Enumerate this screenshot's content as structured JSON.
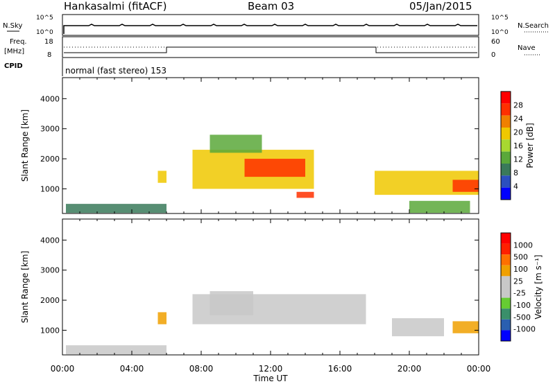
{
  "header": {
    "station": "Hankasalmi (fitACF)",
    "beam": "Beam 03",
    "date": "05/Jan/2015"
  },
  "summary": {
    "nsky_label": "N.Sky",
    "nsearch_label": "N.Search",
    "freq_label_1": "Freq.",
    "freq_label_2": "[MHz]",
    "nave_label": "Nave",
    "cpid_label": "CPID",
    "cpid_value": "normal (fast stereo) 153",
    "noise_ticks_left": [
      "10^5",
      "10^0"
    ],
    "noise_ticks_right": [
      "10^5",
      "10^0"
    ],
    "freq_ticks_left": [
      "18",
      "8"
    ],
    "nave_ticks_right": [
      "60",
      "0"
    ]
  },
  "colors": {
    "power_scale": [
      "#0000ff",
      "#2b4fbf",
      "#3a7a5a",
      "#5aa83a",
      "#a8d830",
      "#f0c800",
      "#f08000",
      "#ff3000",
      "#ff0000"
    ],
    "velocity_scale": [
      "#0000ff",
      "#2a5fb0",
      "#3a8f6a",
      "#66cc33",
      "#c8c8c8",
      "#c8c8c8",
      "#f0a000",
      "#ff7000",
      "#ff2000",
      "#ff0000"
    ],
    "ground_scatter": "#c8c8c8"
  },
  "chart_data": [
    {
      "type": "heatmap",
      "title": "Power",
      "xlabel": "Time UT",
      "ylabel": "Slant Range [km]",
      "colorbar_label": "Power [dB]",
      "colorbar_ticks": [
        "28",
        "24",
        "20",
        "16",
        "12",
        "8",
        "4"
      ],
      "x_ticks": [
        "00:00",
        "04:00",
        "08:00",
        "12:00",
        "16:00",
        "20:00",
        "00:00"
      ],
      "y_ticks": [
        "4000",
        "3000",
        "2000",
        "1000"
      ],
      "xlim": [
        0,
        24
      ],
      "ylim": [
        180,
        4700
      ],
      "zlim": [
        0,
        32
      ],
      "regions": [
        {
          "t0": 0.2,
          "t1": 6.0,
          "r0": 200,
          "r1": 500,
          "level": 8
        },
        {
          "t0": 5.5,
          "t1": 6.0,
          "r0": 1200,
          "r1": 1600,
          "level": 20
        },
        {
          "t0": 7.5,
          "t1": 14.5,
          "r0": 1000,
          "r1": 2300,
          "level": 18
        },
        {
          "t0": 10.5,
          "t1": 14.0,
          "r0": 1400,
          "r1": 2000,
          "level": 26
        },
        {
          "t0": 13.5,
          "t1": 14.5,
          "r0": 700,
          "r1": 900,
          "level": 28
        },
        {
          "t0": 8.5,
          "t1": 11.5,
          "r0": 2200,
          "r1": 2800,
          "level": 12
        },
        {
          "t0": 18.0,
          "t1": 24.0,
          "r0": 800,
          "r1": 1600,
          "level": 18
        },
        {
          "t0": 22.5,
          "t1": 24.0,
          "r0": 900,
          "r1": 1300,
          "level": 26
        },
        {
          "t0": 20.0,
          "t1": 23.5,
          "r0": 200,
          "r1": 600,
          "level": 14
        }
      ]
    },
    {
      "type": "heatmap",
      "title": "Velocity",
      "xlabel": "Time UT",
      "ylabel": "Slant Range [km]",
      "colorbar_label": "Velocity [m s⁻¹]",
      "colorbar_ticks": [
        "1000",
        "500",
        "100",
        "25",
        "-25",
        "-100",
        "-500",
        "-1000"
      ],
      "x_ticks": [
        "00:00",
        "04:00",
        "08:00",
        "12:00",
        "16:00",
        "20:00",
        "00:00"
      ],
      "y_ticks": [
        "4000",
        "3000",
        "2000",
        "1000"
      ],
      "xlim": [
        0,
        24
      ],
      "ylim": [
        180,
        4700
      ],
      "zlim": [
        -1000,
        1000
      ],
      "regions": [
        {
          "t0": 0.2,
          "t1": 6.0,
          "r0": 200,
          "r1": 500,
          "level": 0
        },
        {
          "t0": 7.5,
          "t1": 17.5,
          "r0": 1200,
          "r1": 2200,
          "level": 0
        },
        {
          "t0": 8.5,
          "t1": 11.0,
          "r0": 1500,
          "r1": 2300,
          "level": -100
        },
        {
          "t0": 19.0,
          "t1": 22.0,
          "r0": 800,
          "r1": 1400,
          "level": -100
        },
        {
          "t0": 22.5,
          "t1": 24.0,
          "r0": 900,
          "r1": 1300,
          "level": 300
        },
        {
          "t0": 5.5,
          "t1": 6.0,
          "r0": 1200,
          "r1": 1600,
          "level": 200
        }
      ]
    }
  ],
  "footer": {
    "xlabel": "Time UT"
  }
}
